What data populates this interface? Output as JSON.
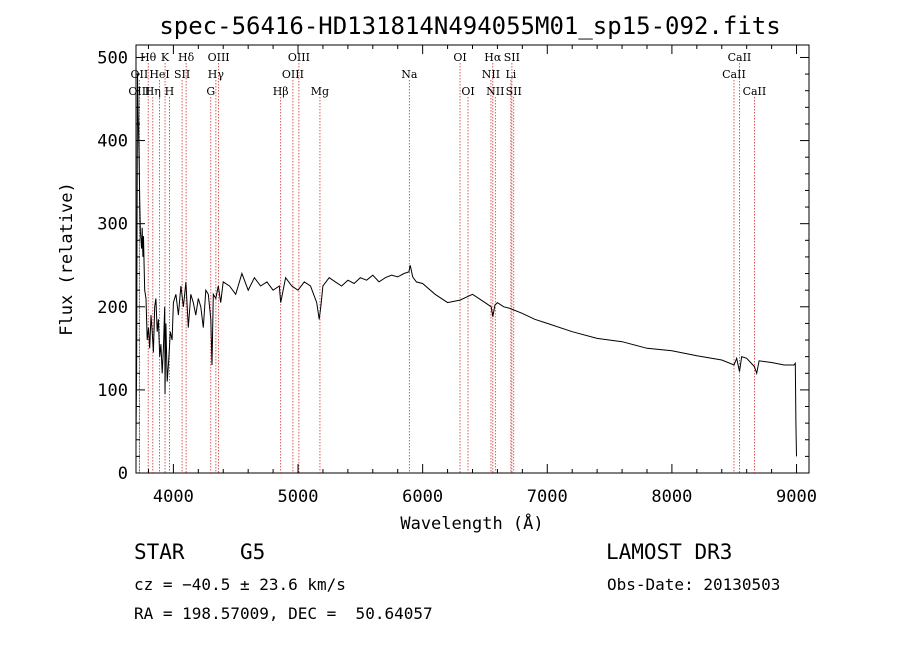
{
  "chart_data": {
    "type": "line",
    "title": "spec-56416-HD131814N494055M01_sp15-092.fits",
    "xlabel": "Wavelength (Å)",
    "ylabel": "Flux (relative)",
    "xlim": [
      3700,
      9100
    ],
    "ylim": [
      0,
      515
    ],
    "xticks": [
      4000,
      5000,
      6000,
      7000,
      8000,
      9000
    ],
    "yticks": [
      0,
      100,
      200,
      300,
      400,
      500
    ],
    "series": [
      {
        "name": "flux",
        "x": [
          3700,
          3705,
          3712,
          3718,
          3725,
          3730,
          3735,
          3740,
          3745,
          3750,
          3755,
          3760,
          3765,
          3770,
          3780,
          3790,
          3800,
          3810,
          3820,
          3830,
          3840,
          3850,
          3860,
          3870,
          3880,
          3890,
          3900,
          3910,
          3920,
          3930,
          3933,
          3940,
          3950,
          3960,
          3968,
          3975,
          3990,
          4000,
          4020,
          4040,
          4060,
          4080,
          4100,
          4120,
          4140,
          4160,
          4180,
          4200,
          4220,
          4240,
          4260,
          4280,
          4300,
          4310,
          4320,
          4340,
          4360,
          4380,
          4400,
          4450,
          4500,
          4550,
          4600,
          4650,
          4700,
          4750,
          4800,
          4850,
          4861,
          4900,
          4950,
          5000,
          5050,
          5100,
          5150,
          5170,
          5183,
          5200,
          5250,
          5300,
          5350,
          5400,
          5450,
          5500,
          5550,
          5600,
          5650,
          5700,
          5750,
          5800,
          5850,
          5890,
          5900,
          5920,
          5950,
          6000,
          6100,
          6200,
          6300,
          6400,
          6500,
          6550,
          6563,
          6580,
          6600,
          6650,
          6700,
          6800,
          6900,
          7000,
          7200,
          7400,
          7600,
          7800,
          8000,
          8200,
          8400,
          8498,
          8520,
          8542,
          8560,
          8600,
          8662,
          8680,
          8700,
          8800,
          8900,
          8980,
          8990,
          8995,
          9000
        ],
        "y": [
          40,
          120,
          480,
          430,
          380,
          330,
          290,
          280,
          270,
          295,
          260,
          285,
          250,
          220,
          210,
          160,
          175,
          150,
          190,
          170,
          145,
          200,
          210,
          170,
          185,
          140,
          155,
          120,
          150,
          200,
          95,
          180,
          110,
          130,
          150,
          170,
          160,
          205,
          215,
          190,
          225,
          200,
          230,
          175,
          215,
          205,
          190,
          210,
          200,
          175,
          220,
          215,
          185,
          130,
          215,
          210,
          225,
          205,
          230,
          225,
          215,
          240,
          220,
          235,
          225,
          230,
          220,
          225,
          205,
          235,
          225,
          220,
          230,
          225,
          205,
          185,
          200,
          225,
          235,
          230,
          225,
          232,
          228,
          235,
          232,
          238,
          230,
          235,
          238,
          236,
          240,
          242,
          250,
          236,
          230,
          228,
          215,
          205,
          208,
          215,
          205,
          200,
          188,
          202,
          205,
          200,
          198,
          192,
          185,
          180,
          170,
          162,
          158,
          150,
          147,
          141,
          136,
          130,
          138,
          122,
          140,
          138,
          128,
          120,
          135,
          133,
          130,
          130,
          132,
          60,
          20
        ]
      }
    ],
    "line_markers": [
      {
        "wl": 3727,
        "label": "OII",
        "row": 1
      },
      {
        "wl": 3727,
        "label": "OIII",
        "row": 2
      },
      {
        "wl": 3798,
        "label": "Hθ",
        "row": 0
      },
      {
        "wl": 3835,
        "label": "Hη",
        "row": 2
      },
      {
        "wl": 3889,
        "label": "HeI",
        "row": 1
      },
      {
        "wl": 3933,
        "label": "K",
        "row": 0
      },
      {
        "wl": 3968,
        "label": "H",
        "row": 2
      },
      {
        "wl": 4070,
        "label": "SII",
        "row": 1
      },
      {
        "wl": 4102,
        "label": "Hδ",
        "row": 0
      },
      {
        "wl": 4300,
        "label": "G",
        "row": 2
      },
      {
        "wl": 4341,
        "label": "Hγ",
        "row": 1
      },
      {
        "wl": 4363,
        "label": "OIII",
        "row": 0
      },
      {
        "wl": 4861,
        "label": "Hβ",
        "row": 2
      },
      {
        "wl": 4959,
        "label": "OIII",
        "row": 1
      },
      {
        "wl": 5007,
        "label": "OIII",
        "row": 0
      },
      {
        "wl": 5176,
        "label": "Mg",
        "row": 2
      },
      {
        "wl": 5893,
        "label": "Na",
        "row": 1
      },
      {
        "wl": 6300,
        "label": "OI",
        "row": 0
      },
      {
        "wl": 6364,
        "label": "OI",
        "row": 2
      },
      {
        "wl": 6548,
        "label": "NII",
        "row": 1
      },
      {
        "wl": 6563,
        "label": "Hα",
        "row": 0
      },
      {
        "wl": 6583,
        "label": "NII",
        "row": 2
      },
      {
        "wl": 6708,
        "label": "Li",
        "row": 1
      },
      {
        "wl": 6716,
        "label": "SII",
        "row": 0
      },
      {
        "wl": 6731,
        "label": "SII",
        "row": 2
      },
      {
        "wl": 8498,
        "label": "CaII",
        "row": 1
      },
      {
        "wl": 8542,
        "label": "CaII",
        "row": 0
      },
      {
        "wl": 8662,
        "label": "CaII",
        "row": 2
      }
    ]
  },
  "info": {
    "class": "STAR",
    "subclass": "G5",
    "survey": "LAMOST DR3",
    "cz": "cz = −40.5 ± 23.6 km/s",
    "obs_date": "Obs-Date: 20130503",
    "radec": "RA = 198.57009, DEC =  50.64057"
  },
  "colors": {
    "marker_line": "#cc3333",
    "spectrum": "#000000"
  }
}
